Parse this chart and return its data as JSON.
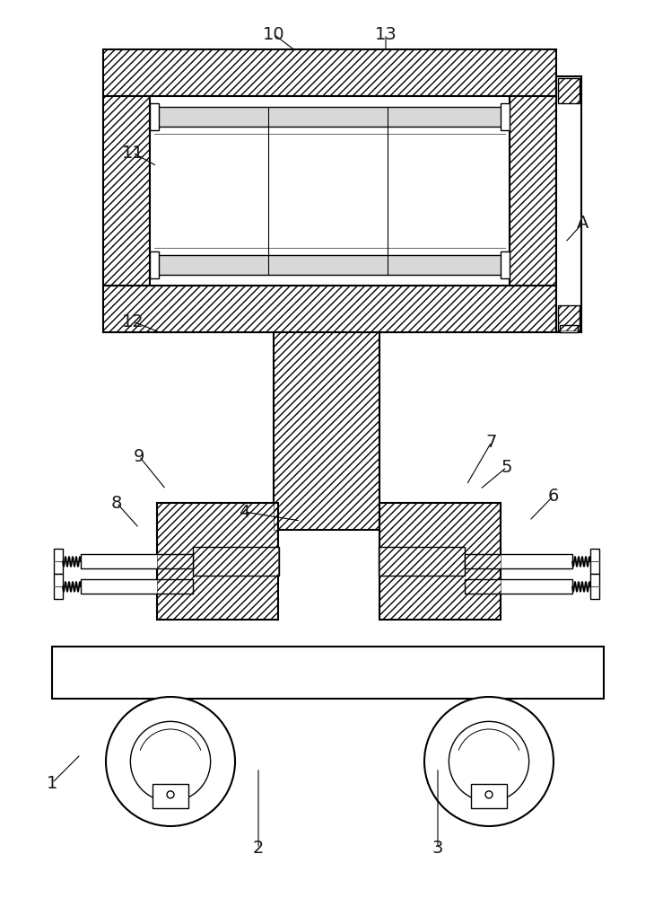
{
  "bg_color": "#ffffff",
  "line_color": "#000000",
  "lw_main": 1.5,
  "lw_thin": 1.0,
  "label_fontsize": 14,
  "label_color": "#1a1a1a"
}
